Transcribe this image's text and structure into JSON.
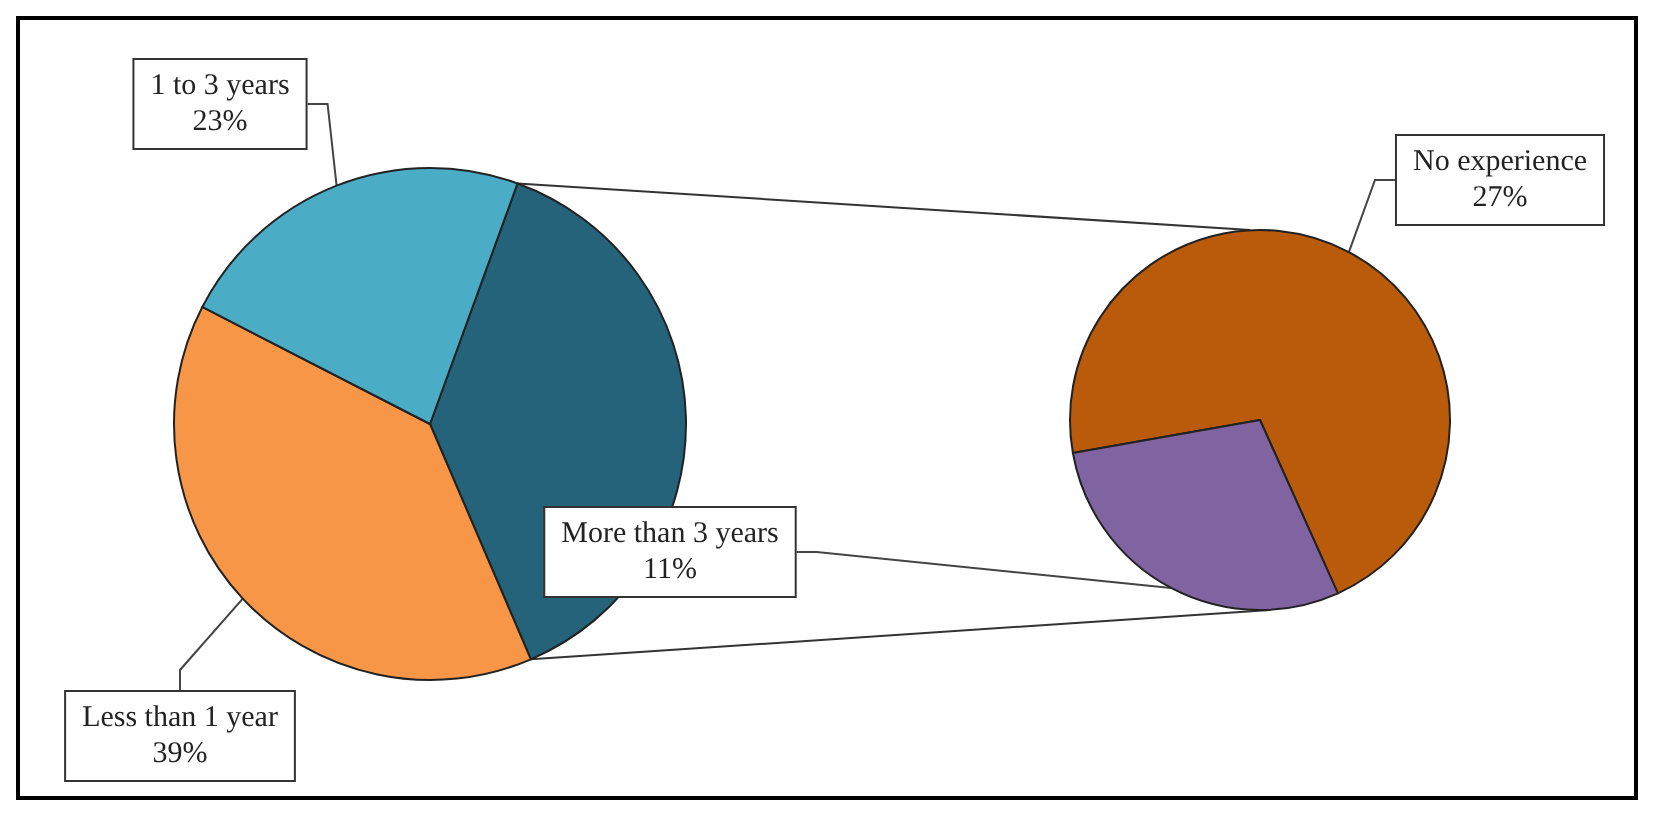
{
  "chart_data": [
    {
      "type": "pie",
      "categories": [
        null,
        "Less than 1 year",
        "1 to 3 years"
      ],
      "values": [
        38,
        39,
        23
      ],
      "colors": [
        "#24637a",
        "#f79646",
        "#4bacc6"
      ],
      "value_labels": [
        null,
        "39%",
        "23%"
      ]
    },
    {
      "type": "pie",
      "categories": [
        "No experience",
        "More than 3 years"
      ],
      "values": [
        27,
        11
      ],
      "colors": [
        "#b95b0b",
        "#8064a2"
      ],
      "value_labels": [
        "27%",
        "11%"
      ]
    }
  ]
}
